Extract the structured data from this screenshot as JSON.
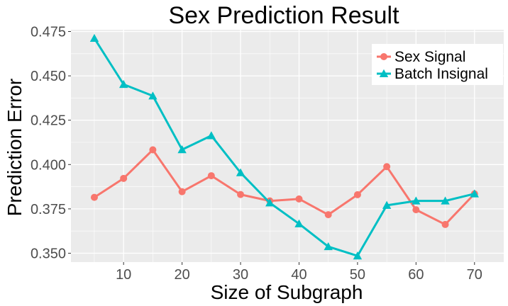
{
  "chart_data": {
    "type": "line",
    "title": "Sex Prediction Result",
    "xlabel": "Size of Subgraph",
    "ylabel": "Prediction Error",
    "xlim": [
      1,
      75
    ],
    "ylim": [
      0.345,
      0.476
    ],
    "xticks": [
      10,
      20,
      30,
      40,
      50,
      60,
      70
    ],
    "yticks": [
      0.35,
      0.375,
      0.4,
      0.425,
      0.45,
      0.475
    ],
    "ytick_labels": [
      "0.350",
      "0.375",
      "0.400",
      "0.425",
      "0.450",
      "0.475"
    ],
    "x": [
      5,
      10,
      15,
      20,
      25,
      30,
      35,
      40,
      45,
      50,
      55,
      60,
      65,
      70
    ],
    "series": [
      {
        "name": "Sex Signal",
        "color": "#f8766d",
        "marker": "circle",
        "values": [
          0.3815,
          0.3922,
          0.4083,
          0.3847,
          0.3937,
          0.3831,
          0.3795,
          0.3806,
          0.3717,
          0.383,
          0.3988,
          0.3745,
          0.3662,
          0.3835
        ]
      },
      {
        "name": "Batch Insignal",
        "color": "#00bfc4",
        "marker": "triangle",
        "values": [
          0.4712,
          0.4452,
          0.4387,
          0.4084,
          0.4163,
          0.3954,
          0.3784,
          0.3666,
          0.3537,
          0.3485,
          0.377,
          0.3795,
          0.3795,
          0.3835
        ]
      }
    ],
    "grid": true,
    "legend_position": "top-right",
    "panel_background": "#ebebeb",
    "grid_color": "#ffffff"
  }
}
